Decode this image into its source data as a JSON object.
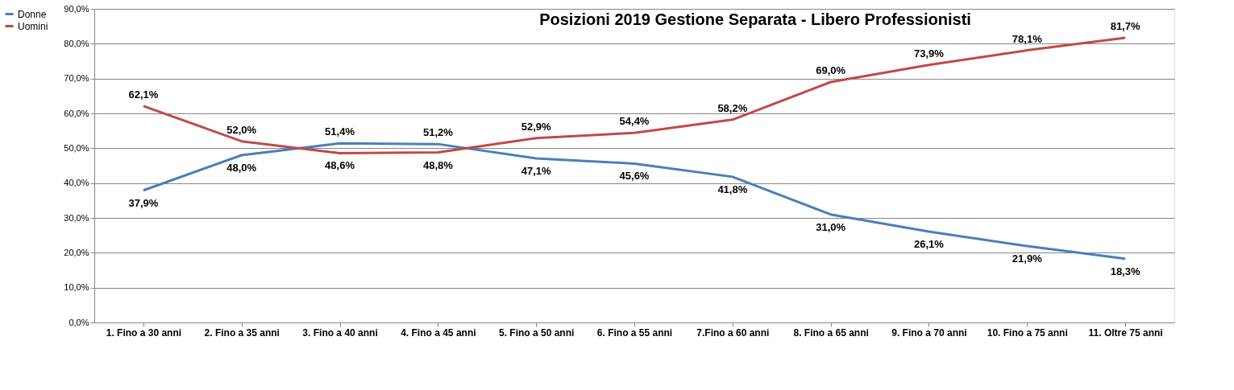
{
  "chart_data": {
    "type": "line",
    "title": "Posizioni 2019 Gestione Separata - Libero Professionisti",
    "categories": [
      "1. Fino a 30 anni",
      "2. Fino a 35 anni",
      "3. Fino a 40 anni",
      "4. Fino a 45 anni",
      "5. Fino a 50 anni",
      "6. Fino a 55 anni",
      "7.Fino a 60 anni",
      "8. Fino a 65 anni",
      "9. Fino a 70 anni",
      "10. Fino a 75 anni",
      "11. Oltre 75 anni"
    ],
    "series": [
      {
        "name": "Donne",
        "color": "#4a7ebb",
        "values": [
          37.9,
          48.0,
          51.4,
          51.2,
          47.1,
          45.6,
          41.8,
          31.0,
          26.1,
          21.9,
          18.3
        ],
        "value_labels": [
          "37,9%",
          "48,0%",
          "51,4%",
          "51,2%",
          "47,1%",
          "45,6%",
          "41,8%",
          "31,0%",
          "26,1%",
          "21,9%",
          "18,3%"
        ]
      },
      {
        "name": "Uomini",
        "color": "#be4b48",
        "values": [
          62.1,
          52.0,
          48.6,
          48.8,
          52.9,
          54.4,
          58.2,
          69.0,
          73.9,
          78.1,
          81.7
        ],
        "value_labels": [
          "62,1%",
          "52,0%",
          "48,6%",
          "48,8%",
          "52,9%",
          "54,4%",
          "58,2%",
          "69,0%",
          "73,9%",
          "78,1%",
          "81,7%"
        ]
      }
    ],
    "ylim": [
      0,
      90
    ],
    "yticks": [
      {
        "value": 0,
        "label": "0,0%"
      },
      {
        "value": 10,
        "label": "10,0%"
      },
      {
        "value": 20,
        "label": "20,0%"
      },
      {
        "value": 30,
        "label": "30,0%"
      },
      {
        "value": 40,
        "label": "40,0%"
      },
      {
        "value": 50,
        "label": "50,0%"
      },
      {
        "value": 60,
        "label": "60,0%"
      },
      {
        "value": 70,
        "label": "70,0%"
      },
      {
        "value": 80,
        "label": "80,0%"
      },
      {
        "value": 90,
        "label": "90,0%"
      }
    ],
    "grid": "y",
    "legend": "left",
    "marker": "none",
    "line_style": "solid"
  }
}
